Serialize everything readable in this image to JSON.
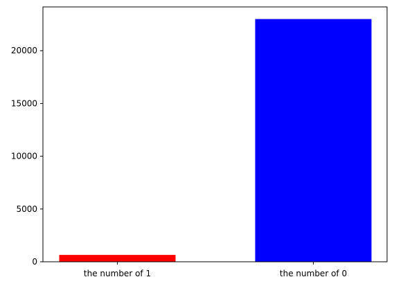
{
  "chart_data": {
    "type": "bar",
    "categories": [
      "the number of 1",
      "the number of 0"
    ],
    "values": [
      650,
      23000
    ],
    "colors": [
      "#ff0000",
      "#0000ff"
    ],
    "title": "",
    "xlabel": "",
    "ylabel": "",
    "ylim": [
      0,
      24150
    ],
    "yticks": [
      0,
      5000,
      10000,
      15000,
      20000
    ],
    "ytick_labels": [
      "0",
      "5000",
      "10000",
      "15000",
      "20000"
    ],
    "grid": false,
    "legend": "none"
  }
}
